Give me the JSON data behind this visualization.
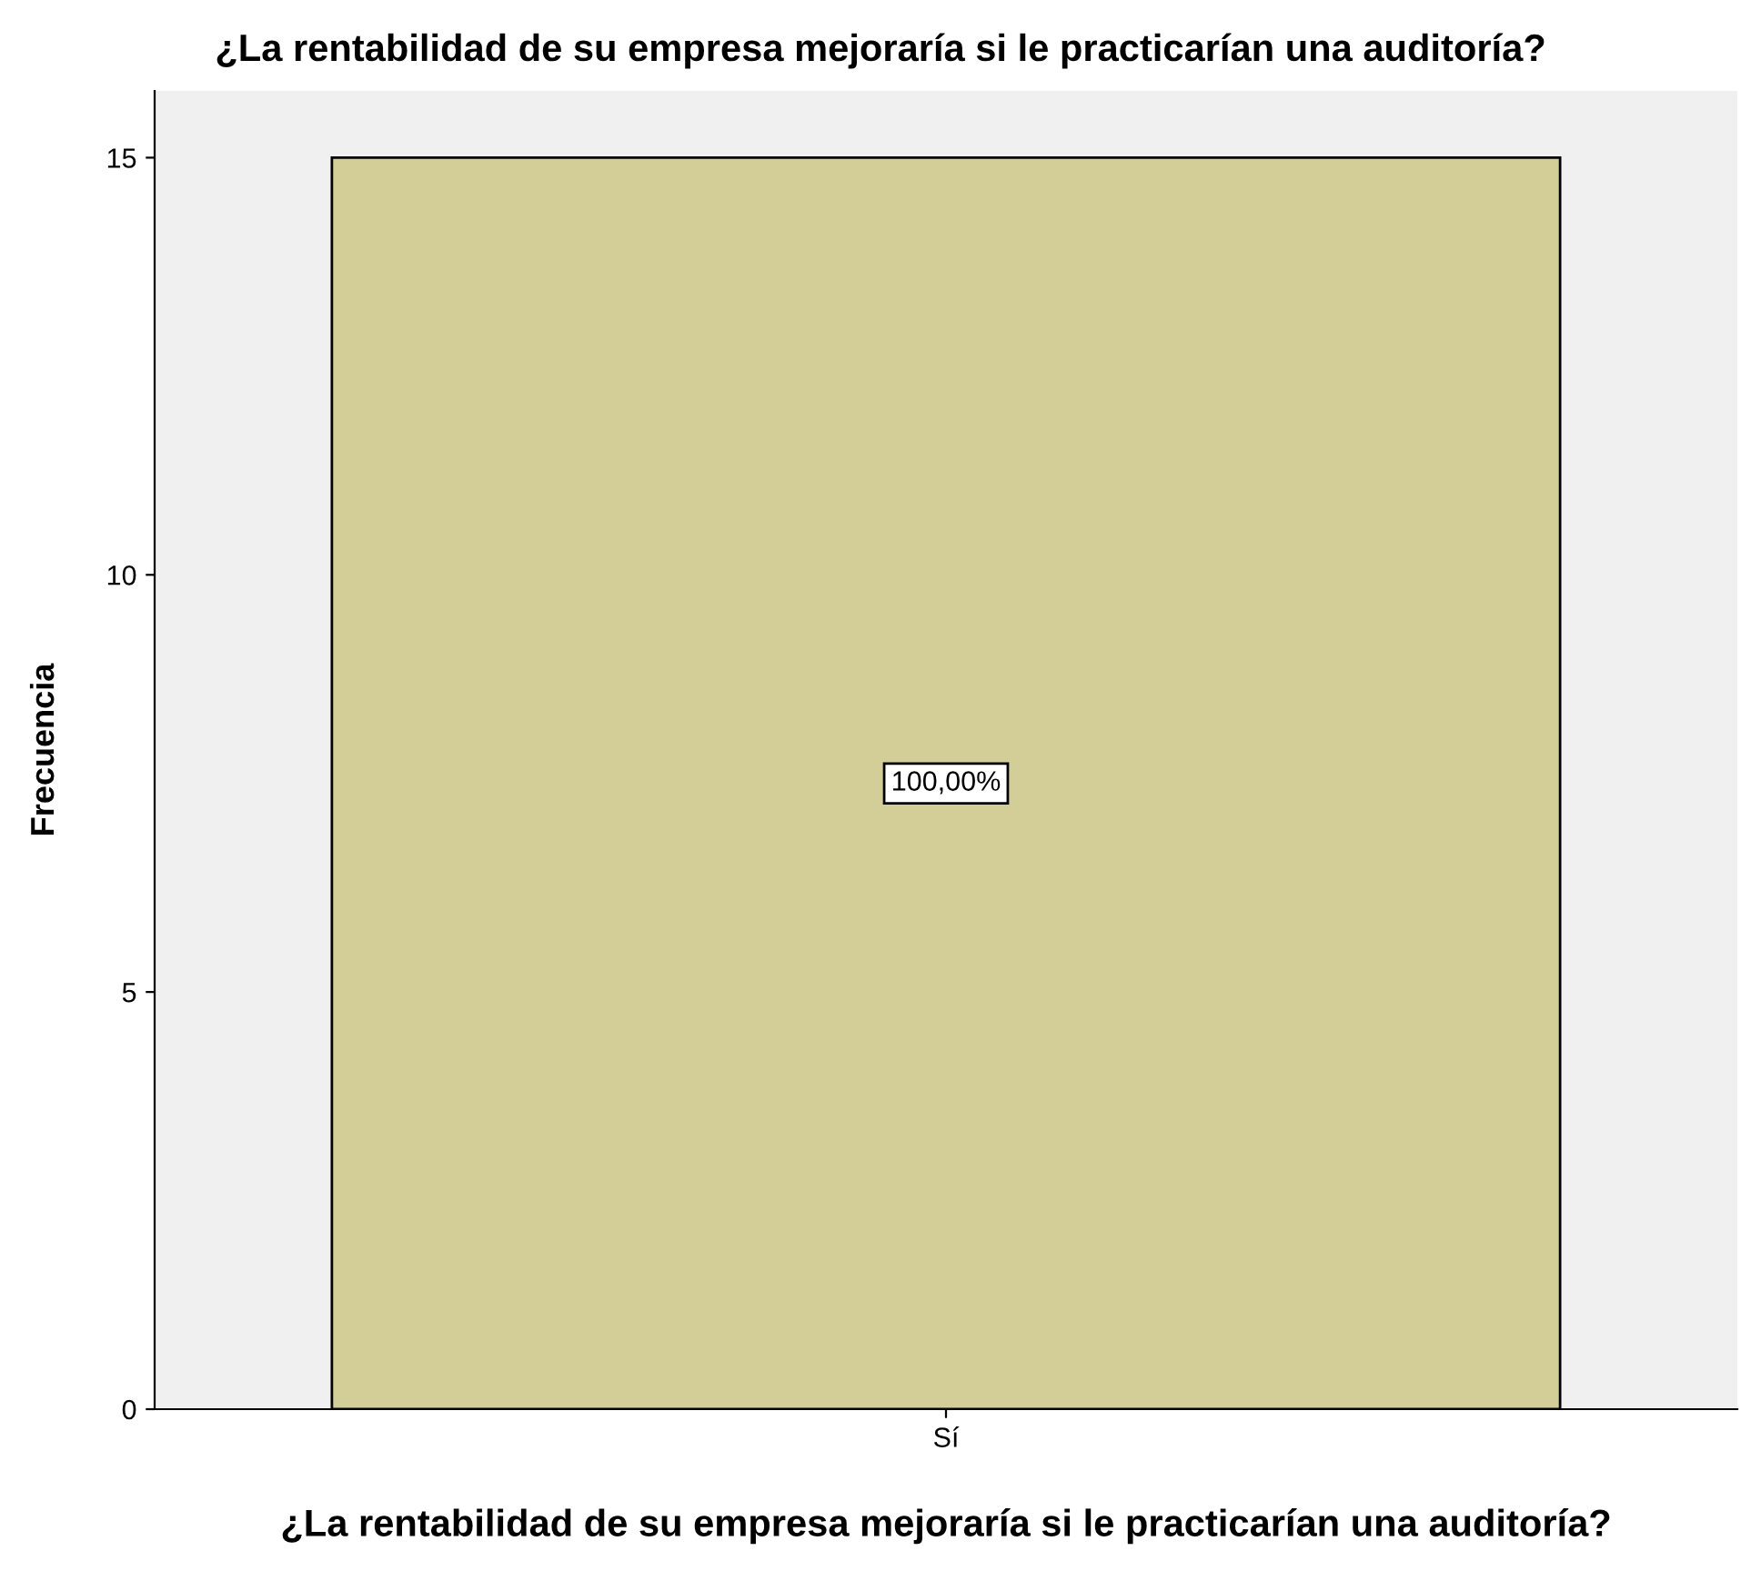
{
  "chart_data": {
    "type": "bar",
    "title": "¿La rentabilidad de su empresa mejoraría si le practicarían una auditoría?",
    "xlabel": "¿La rentabilidad de su empresa mejoraría si le practicarían una auditoría?",
    "ylabel": "Frecuencia",
    "categories": [
      "Sí"
    ],
    "values": [
      15
    ],
    "annotations": [
      "100,00%"
    ],
    "color": "#d3ce97",
    "ylim": [
      0,
      15.8
    ],
    "yticks": [
      0,
      5,
      10,
      15
    ],
    "grid": false,
    "legend": false
  }
}
